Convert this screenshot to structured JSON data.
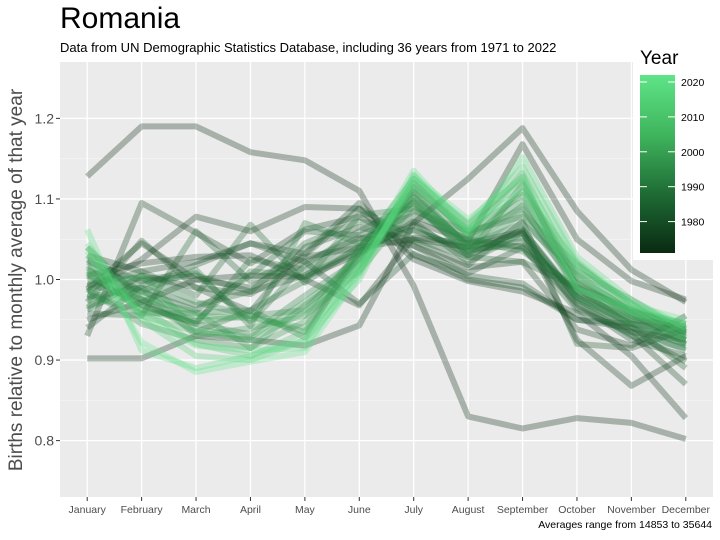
{
  "title": "Romania",
  "subtitle": "Data from UN Demographic Statistics Database, including 36 years from 1971 to 2022",
  "caption": "Averages range from 14853 to 35644",
  "chart_data": {
    "type": "line",
    "title": "Romania",
    "ylabel": "Births relative to monthly average of that year",
    "xlabel": "",
    "categories": [
      "January",
      "February",
      "March",
      "April",
      "May",
      "June",
      "July",
      "August",
      "September",
      "October",
      "November",
      "December"
    ],
    "ylim": [
      0.73,
      1.27
    ],
    "yticks": [
      0.8,
      0.9,
      1.0,
      1.1,
      1.2
    ],
    "ytick_labels": [
      "0.8",
      "0.9",
      "1.0",
      "1.1",
      "1.2"
    ],
    "grid": true,
    "legend": {
      "title": "Year",
      "position": "top-right",
      "range": [
        1971,
        2022
      ],
      "ticks": [
        1980,
        1990,
        2000,
        2010,
        2020
      ],
      "colors": [
        "#0a2a12",
        "#1e6b34",
        "#3fb45d",
        "#5fe488"
      ]
    },
    "series": [
      {
        "year": 1971,
        "values": [
          1.128,
          1.19,
          1.19,
          1.158,
          1.148,
          1.11,
          0.992,
          0.83,
          0.815,
          0.828,
          0.822,
          0.802
        ]
      },
      {
        "year": 1972,
        "values": [
          0.902,
          0.902,
          0.93,
          0.925,
          0.918,
          0.943,
          1.07,
          1.125,
          1.188,
          1.085,
          1.012,
          0.972
        ]
      },
      {
        "year": 1973,
        "values": [
          0.95,
          0.972,
          1.0,
          1.005,
          1.003,
          1.032,
          1.072,
          1.048,
          1.168,
          1.05,
          0.998,
          0.975
        ]
      },
      {
        "year": 1974,
        "values": [
          0.985,
          1.025,
          1.078,
          1.06,
          1.09,
          1.088,
          1.025,
          0.998,
          0.985,
          0.958,
          0.905,
          0.828
        ]
      },
      {
        "year": 1975,
        "values": [
          1.005,
          1.02,
          1.028,
          1.03,
          1.0,
          0.968,
          1.052,
          1.045,
          1.06,
          0.925,
          0.868,
          0.905
        ]
      },
      {
        "year": 1976,
        "values": [
          0.93,
          1.095,
          1.058,
          1.02,
          1.062,
          1.078,
          1.042,
          1.015,
          1.022,
          0.938,
          0.918,
          0.955
        ]
      },
      {
        "year": 1977,
        "values": [
          0.988,
          1.045,
          1.0,
          0.99,
          1.028,
          1.04,
          1.05,
          1.04,
          1.058,
          0.965,
          0.932,
          0.87
        ]
      },
      {
        "year": 1978,
        "values": [
          1.03,
          1.01,
          1.022,
          1.045,
          1.032,
          1.095,
          1.03,
          1.008,
          1.04,
          0.97,
          0.925,
          0.905
        ]
      },
      {
        "year": 1979,
        "values": [
          0.965,
          1.005,
          0.99,
          0.982,
          1.022,
          1.052,
          1.042,
          1.005,
          0.995,
          0.95,
          0.94,
          0.92
        ]
      },
      {
        "year": 1980,
        "values": [
          0.94,
          0.992,
          1.018,
          1.045,
          1.022,
          0.97,
          1.032,
          1.0,
          0.99,
          0.95,
          0.945,
          0.935
        ]
      },
      {
        "year": 1981,
        "values": [
          0.972,
          1.048,
          0.99,
          0.96,
          1.04,
          1.065,
          1.048,
          1.018,
          1.072,
          0.92,
          0.915,
          0.938
        ]
      },
      {
        "year": 1982,
        "values": [
          1.022,
          0.998,
          1.005,
          0.985,
          1.005,
          1.035,
          1.068,
          1.03,
          1.062,
          0.978,
          0.935,
          0.925
        ]
      },
      {
        "year": 1983,
        "values": [
          1.025,
          0.985,
          0.962,
          1.005,
          1.06,
          1.055,
          1.08,
          1.05,
          1.04,
          0.962,
          0.935,
          0.898
        ]
      },
      {
        "year": 1984,
        "values": [
          0.958,
          0.955,
          1.06,
          0.998,
          1.03,
          1.088,
          1.05,
          1.028,
          1.022,
          0.99,
          0.942,
          0.89
        ]
      },
      {
        "year": 1985,
        "values": [
          0.992,
          1.01,
          0.98,
          1.068,
          0.996,
          1.042,
          1.062,
          1.035,
          1.048,
          0.982,
          0.95,
          0.942
        ]
      },
      {
        "year": 1986,
        "values": [
          1.005,
          0.968,
          0.945,
          1.025,
          1.012,
          1.05,
          1.072,
          1.022,
          1.058,
          0.978,
          0.945,
          0.925
        ]
      },
      {
        "year": 1987,
        "values": [
          0.978,
          0.99,
          0.968,
          0.985,
          1.045,
          1.072,
          1.06,
          1.038,
          1.042,
          0.985,
          0.952,
          0.932
        ]
      },
      {
        "year": 1988,
        "values": [
          0.962,
          1.0,
          1.008,
          0.948,
          1.018,
          1.06,
          1.095,
          1.03,
          1.062,
          0.975,
          0.94,
          0.912
        ]
      },
      {
        "year": 1989,
        "values": [
          1.04,
          0.975,
          0.935,
          0.962,
          0.998,
          1.08,
          1.088,
          1.048,
          1.035,
          0.99,
          0.962,
          0.945
        ]
      },
      {
        "year": 1990,
        "values": [
          0.995,
          0.975,
          0.948,
          1.01,
          1.005,
          1.04,
          1.11,
          1.04,
          1.052,
          0.972,
          0.93,
          0.915
        ]
      },
      {
        "year": 1991,
        "values": [
          1.012,
          0.985,
          1.012,
          0.942,
          1.07,
          1.045,
          1.085,
          1.06,
          1.078,
          0.995,
          0.958,
          0.92
        ]
      },
      {
        "year": 1992,
        "values": [
          0.982,
          0.958,
          0.958,
          0.962,
          0.928,
          1.04,
          1.102,
          1.042,
          1.07,
          1.01,
          0.975,
          0.935
        ]
      },
      {
        "year": 1993,
        "values": [
          1.015,
          0.968,
          0.945,
          0.932,
          0.98,
          1.025,
          1.12,
          1.055,
          1.088,
          0.998,
          0.955,
          0.93
        ]
      },
      {
        "year": 1994,
        "values": [
          0.998,
          1.002,
          0.972,
          0.955,
          0.962,
          1.032,
          1.098,
          1.03,
          1.118,
          1.002,
          0.962,
          0.938
        ]
      },
      {
        "year": 1995,
        "values": [
          0.988,
          0.945,
          0.925,
          0.915,
          0.968,
          1.018,
          1.105,
          1.042,
          1.092,
          0.985,
          0.948,
          0.925
        ]
      },
      {
        "year": 1996,
        "values": [
          1.008,
          0.962,
          0.948,
          0.955,
          0.935,
          1.028,
          1.115,
          1.06,
          1.105,
          0.992,
          0.962,
          0.94
        ]
      },
      {
        "year": 1997,
        "values": [
          0.975,
          0.99,
          0.93,
          0.94,
          0.955,
          1.01,
          1.092,
          1.035,
          1.082,
          1.018,
          0.97,
          0.928
        ]
      },
      {
        "year": 1998,
        "values": [
          1.018,
          0.975,
          0.96,
          0.915,
          0.948,
          1.038,
          1.125,
          1.068,
          1.128,
          0.978,
          0.945,
          0.918
        ]
      },
      {
        "year": 1999,
        "values": [
          0.985,
          1.005,
          0.938,
          0.928,
          0.972,
          1.022,
          1.108,
          1.052,
          1.098,
          1.008,
          0.958,
          0.932
        ]
      },
      {
        "year": 2000,
        "values": [
          0.968,
          0.982,
          0.955,
          0.952,
          0.94,
          1.03,
          1.098,
          1.045,
          1.11,
          1.02,
          0.965,
          0.938
        ]
      },
      {
        "year": 2005,
        "values": [
          1.03,
          0.955,
          0.935,
          0.925,
          0.96,
          1.012,
          1.115,
          1.062,
          1.122,
          0.99,
          0.955,
          0.945
        ]
      },
      {
        "year": 2010,
        "values": [
          1.01,
          0.965,
          0.92,
          0.905,
          0.935,
          1.008,
          1.13,
          1.055,
          1.132,
          1.005,
          0.96,
          0.925
        ]
      },
      {
        "year": 2014,
        "values": [
          1.04,
          0.95,
          0.905,
          0.9,
          0.925,
          1.0,
          1.125,
          1.07,
          1.14,
          1.022,
          0.97,
          0.935
        ]
      },
      {
        "year": 2018,
        "values": [
          1.045,
          0.955,
          0.918,
          0.912,
          0.915,
          1.015,
          1.118,
          1.058,
          1.152,
          1.028,
          0.975,
          0.94
        ]
      },
      {
        "year": 2020,
        "values": [
          1.062,
          0.912,
          0.89,
          0.905,
          0.925,
          1.02,
          1.135,
          1.062,
          1.112,
          0.988,
          0.962,
          0.945
        ]
      },
      {
        "year": 2022,
        "values": [
          1.035,
          0.922,
          0.885,
          0.898,
          0.91,
          1.005,
          1.128,
          1.075,
          1.125,
          1.015,
          0.968,
          0.95
        ]
      }
    ]
  }
}
